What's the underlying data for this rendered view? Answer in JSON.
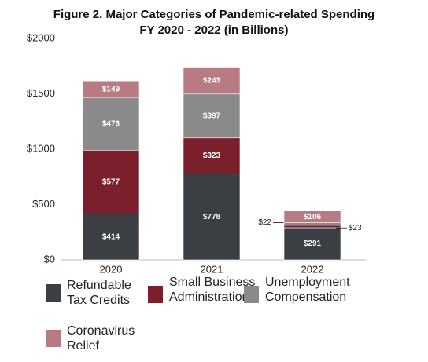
{
  "chart_data": {
    "type": "stacked_bar",
    "title": "Figure 2. Major Categories of Pandemic-related Spending",
    "subtitle": "FY 2020 - 2022 (in Billions)",
    "categories": [
      "2020",
      "2021",
      "2022"
    ],
    "series": [
      {
        "name": "Refundable Tax Credits",
        "color": "#3b3e43",
        "values": [
          414,
          778,
          291
        ],
        "value_labels": [
          "$414",
          "$778",
          "$291"
        ]
      },
      {
        "name": "Small Business Administration",
        "color": "#7a1f2b",
        "values": [
          577,
          323,
          22
        ],
        "value_labels": [
          "$577",
          "$323",
          "$22"
        ]
      },
      {
        "name": "Unemployment Compensation",
        "color": "#8a8a8a",
        "values": [
          476,
          397,
          23
        ],
        "value_labels": [
          "$476",
          "$397",
          "$23"
        ]
      },
      {
        "name": "Coronavirus Relief",
        "color": "#b97b83",
        "values": [
          149,
          243,
          106
        ],
        "value_labels": [
          "$149",
          "$243",
          "$106"
        ]
      }
    ],
    "ylim": [
      0,
      2000
    ],
    "yticks": [
      {
        "value": 0,
        "label": "$0"
      },
      {
        "value": 500,
        "label": "$500"
      },
      {
        "value": 1000,
        "label": "$1000"
      },
      {
        "value": 1500,
        "label": "$1500"
      },
      {
        "value": 2000,
        "label": "$2000"
      }
    ],
    "grid": false
  }
}
